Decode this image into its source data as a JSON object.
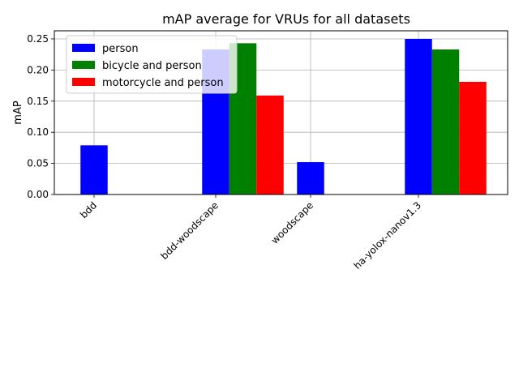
{
  "chart_data": {
    "type": "bar",
    "title": "mAP average for VRUs for all datasets",
    "xlabel": "",
    "ylabel": "mAP",
    "categories": [
      "bdd",
      "bdd-woodscape",
      "woodscape",
      "ha-yolox-nanov1.3"
    ],
    "series": [
      {
        "name": "person",
        "color": "#0000ff",
        "values": [
          0.079,
          0.233,
          0.052,
          0.25
        ]
      },
      {
        "name": "bicycle and person",
        "color": "#008000",
        "values": [
          null,
          0.243,
          null,
          0.233
        ]
      },
      {
        "name": "motorcycle and person",
        "color": "#ff0000",
        "values": [
          null,
          0.159,
          null,
          0.181
        ]
      }
    ],
    "ylim": [
      0,
      0.263
    ],
    "yticks": [
      "0.00",
      "0.05",
      "0.10",
      "0.15",
      "0.20",
      "0.25"
    ],
    "grid": true,
    "legend_position": "upper-left"
  }
}
